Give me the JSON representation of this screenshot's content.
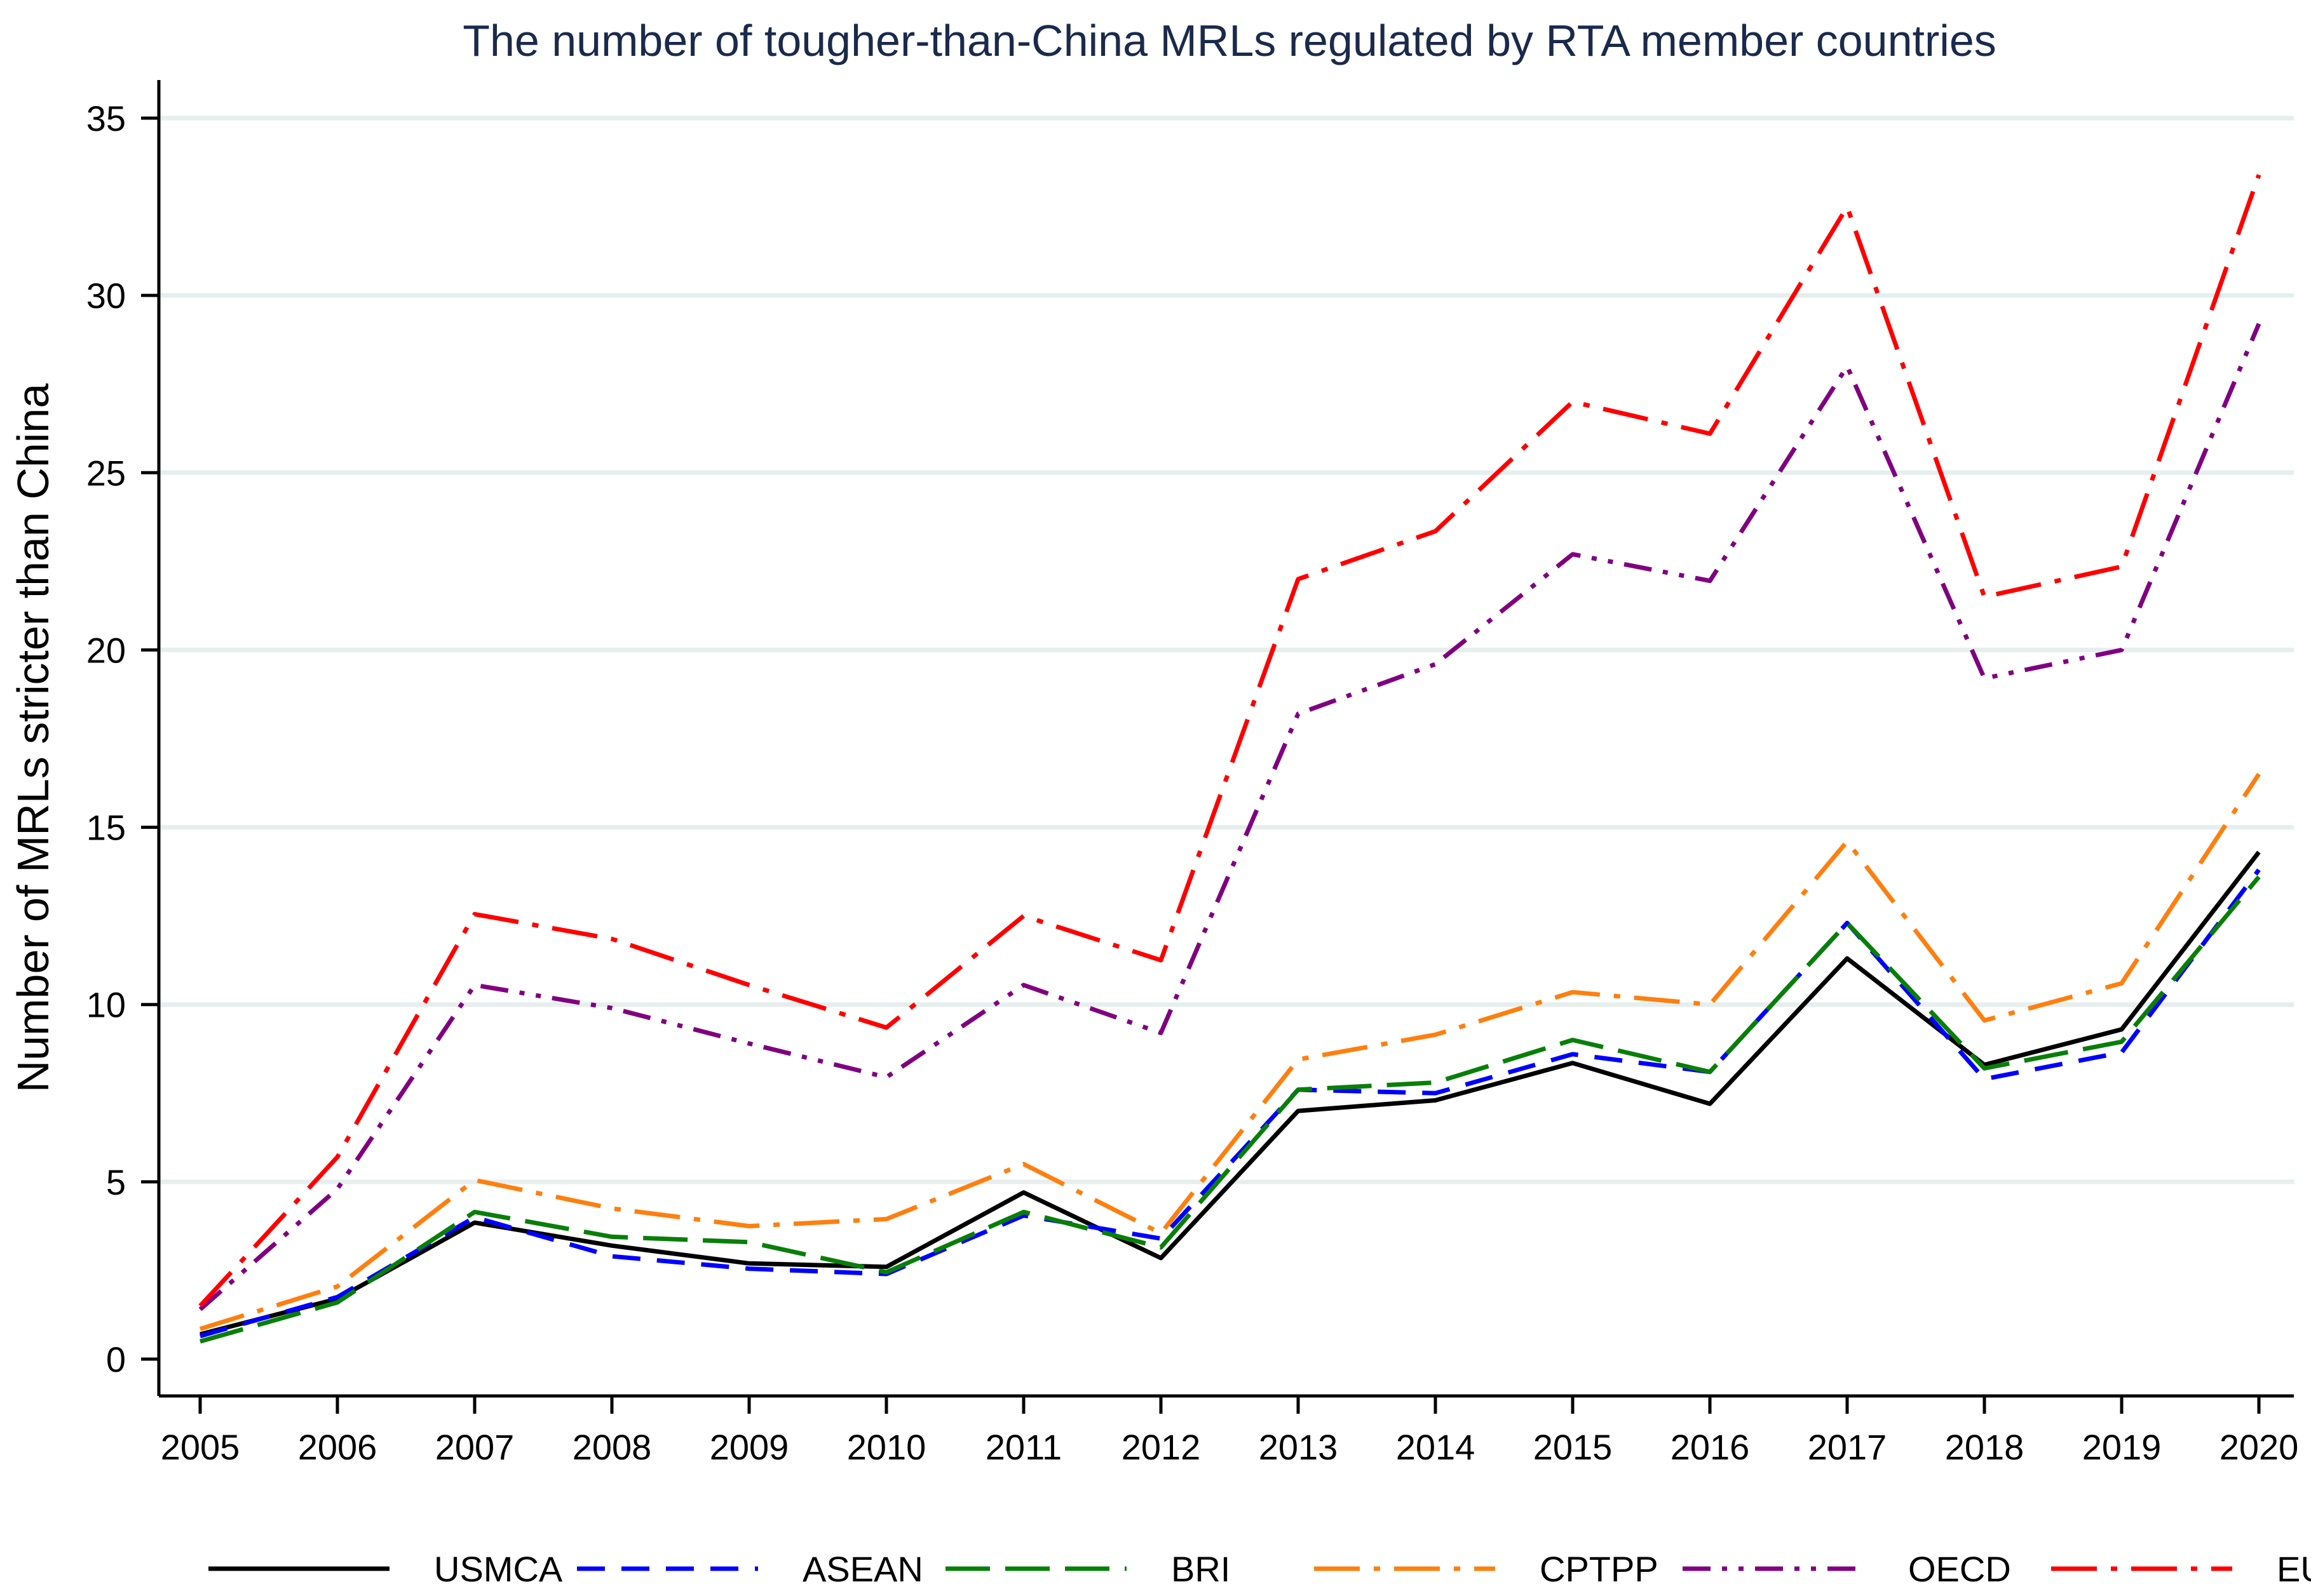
{
  "chart_data": {
    "type": "line",
    "title": "The number of tougher-than-China MRLs regulated by RTA member countries",
    "xlabel": "",
    "ylabel": "Number of MRLs stricter than China",
    "ylim": [
      0,
      35
    ],
    "xlim": [
      2005,
      2020
    ],
    "grid": true,
    "legend_position": "bottom",
    "x": [
      2005,
      2006,
      2007,
      2008,
      2009,
      2010,
      2011,
      2012,
      2013,
      2014,
      2015,
      2016,
      2017,
      2018,
      2019,
      2020
    ],
    "x_tick_labels": [
      "2005",
      "2006",
      "2007",
      "2008",
      "2009",
      "2010",
      "2011",
      "2012",
      "2013",
      "2014",
      "2015",
      "2016",
      "2017",
      "2018",
      "2019",
      "2020"
    ],
    "y_ticks": [
      0,
      5,
      10,
      15,
      20,
      25,
      30,
      35
    ],
    "y_tick_labels": [
      "0",
      "5",
      "10",
      "15",
      "20",
      "25",
      "30",
      "35"
    ],
    "series": [
      {
        "name": "USMCA",
        "color": "#000000",
        "dash": "solid",
        "values": [
          0.7,
          1.7,
          3.85,
          3.2,
          2.7,
          2.6,
          4.7,
          2.85,
          7.0,
          7.3,
          8.35,
          7.2,
          11.3,
          8.3,
          9.3,
          14.3
        ]
      },
      {
        "name": "ASEAN",
        "color": "#0000ff",
        "dash": "dash",
        "values": [
          0.65,
          1.75,
          4.0,
          2.9,
          2.55,
          2.4,
          4.05,
          3.4,
          7.6,
          7.5,
          8.6,
          8.1,
          12.3,
          7.9,
          8.65,
          13.8
        ]
      },
      {
        "name": "BRI",
        "color": "#087f08",
        "dash": "longdash",
        "values": [
          0.5,
          1.6,
          4.15,
          3.45,
          3.3,
          2.45,
          4.15,
          3.15,
          7.6,
          7.8,
          9.0,
          8.1,
          12.3,
          8.2,
          8.95,
          13.6
        ]
      },
      {
        "name": "CPTPP",
        "color": "#ff7f0e",
        "dash": "longdashdot",
        "values": [
          0.85,
          2.05,
          5.05,
          4.25,
          3.75,
          3.95,
          5.5,
          3.55,
          8.45,
          9.15,
          10.35,
          10.0,
          14.6,
          9.55,
          10.6,
          16.5
        ]
      },
      {
        "name": "OECD",
        "color": "#800080",
        "dash": "dashdotdot",
        "values": [
          1.4,
          4.8,
          10.55,
          9.9,
          8.9,
          7.95,
          10.55,
          9.2,
          18.2,
          19.6,
          22.7,
          21.95,
          28.0,
          19.2,
          20.0,
          29.2
        ]
      },
      {
        "name": "EU",
        "color": "#ff0000",
        "dash": "longdashdot",
        "values": [
          1.5,
          5.7,
          12.55,
          11.85,
          10.55,
          9.35,
          12.5,
          11.25,
          22.0,
          23.35,
          27.0,
          26.1,
          32.5,
          21.5,
          22.35,
          33.4
        ]
      }
    ]
  }
}
